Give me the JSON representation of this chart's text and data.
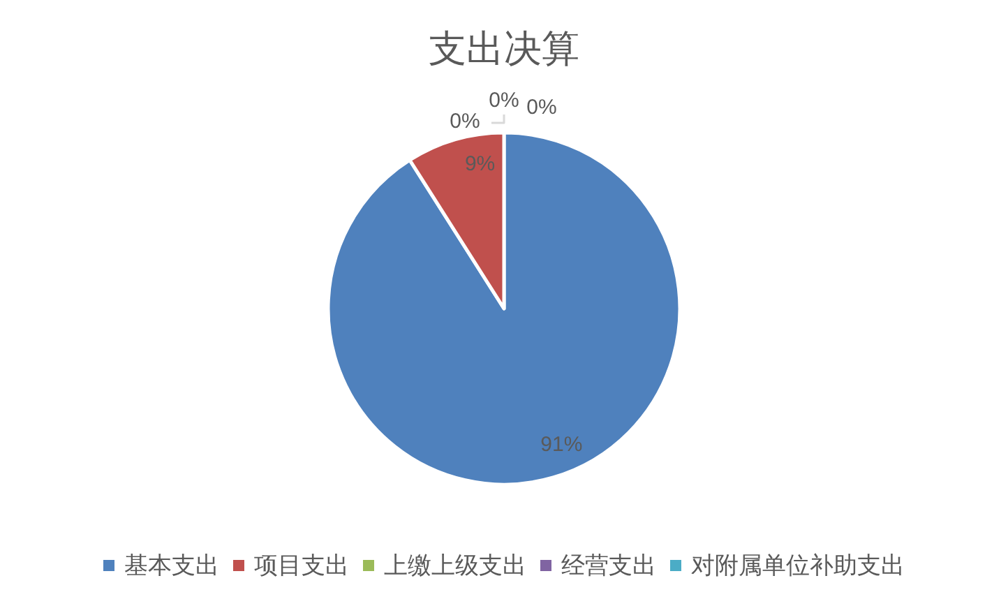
{
  "chart_data": {
    "type": "pie",
    "title": "支出决算",
    "categories": [
      "基本支出",
      "项目支出",
      "上缴上级支出",
      "经营支出",
      "对附属单位补助支出"
    ],
    "values": [
      91,
      9,
      0,
      0,
      0
    ],
    "colors": [
      "#4f81bd",
      "#c0504d",
      "#9bbb59",
      "#8064a2",
      "#4bacc6"
    ],
    "value_labels": [
      "91%",
      "9%",
      "0%",
      "0%",
      "0%"
    ],
    "legend": "bottom"
  }
}
